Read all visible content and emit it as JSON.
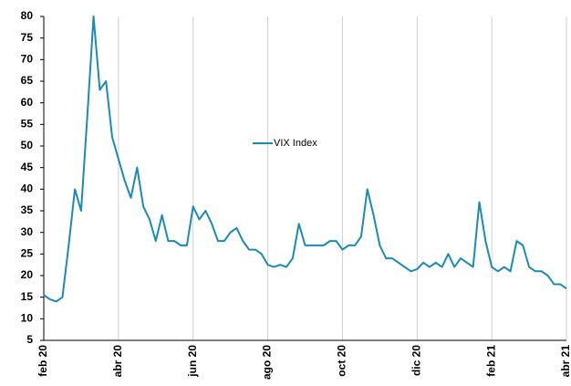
{
  "chart_data": {
    "type": "line",
    "categories": [
      "feb 20",
      null,
      null,
      null,
      null,
      null,
      null,
      null,
      null,
      null,
      null,
      null,
      "abr 20",
      null,
      null,
      null,
      null,
      null,
      null,
      null,
      null,
      null,
      null,
      null,
      "jun 20",
      null,
      null,
      null,
      null,
      null,
      null,
      null,
      null,
      null,
      null,
      null,
      "ago 20",
      null,
      null,
      null,
      null,
      null,
      null,
      null,
      null,
      null,
      null,
      null,
      "oct 20",
      null,
      null,
      null,
      null,
      null,
      null,
      null,
      null,
      null,
      null,
      null,
      "dic 20",
      null,
      null,
      null,
      null,
      null,
      null,
      null,
      null,
      null,
      null,
      null,
      "feb 21",
      null,
      null,
      null,
      null,
      null,
      null,
      null,
      null,
      null,
      null,
      null,
      "abr 21"
    ],
    "series": [
      {
        "name": "VIX Index",
        "color": "#1a8ab8",
        "values": [
          15.5,
          14.5,
          14,
          15,
          27,
          40,
          35,
          57,
          80,
          63,
          65,
          52,
          47,
          42,
          38,
          45,
          36,
          33,
          28,
          34,
          28,
          28,
          27,
          27,
          36,
          33,
          35,
          32,
          28,
          28,
          30,
          31,
          28,
          26,
          26,
          25,
          22.5,
          22,
          22.5,
          22,
          24,
          32,
          27,
          27,
          27,
          27,
          28,
          28,
          26,
          27,
          27,
          29,
          40,
          34,
          27,
          24,
          24,
          23,
          22,
          21,
          21.5,
          23,
          22,
          23,
          22,
          25,
          22,
          24,
          23,
          22,
          37,
          28,
          22,
          21,
          22,
          21,
          28,
          27,
          22,
          21,
          21,
          20,
          18,
          18,
          17
        ]
      }
    ],
    "ylim": [
      5,
      80
    ],
    "yticks": [
      5,
      10,
      15,
      20,
      25,
      30,
      35,
      40,
      45,
      50,
      55,
      60,
      65,
      70,
      75,
      80
    ],
    "grid": true,
    "legend": "center"
  }
}
